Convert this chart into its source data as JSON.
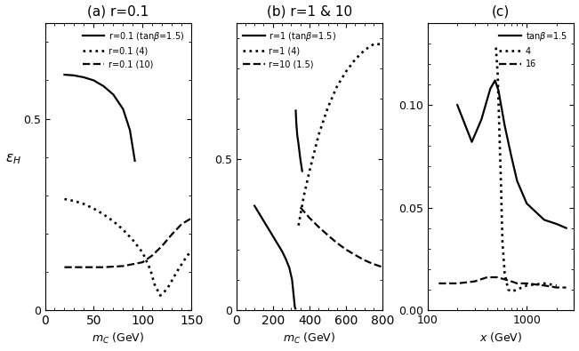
{
  "panel_a": {
    "title": "(a) r=0.1",
    "xlabel": "m_C (GeV)",
    "ylabel": "$\\varepsilon_H$",
    "xlim": [
      0,
      150
    ],
    "ylim": [
      0,
      0.75
    ],
    "legend": [
      "r=0.1 (tan$\\beta$=1.5)",
      "r=0.1 (4)",
      "r=0.1 (10)"
    ],
    "solid_x": [
      20,
      30,
      40,
      50,
      60,
      70,
      80,
      87,
      92
    ],
    "solid_y": [
      0.615,
      0.613,
      0.608,
      0.6,
      0.585,
      0.563,
      0.525,
      0.47,
      0.39
    ],
    "dotted_x": [
      20,
      30,
      40,
      50,
      60,
      70,
      80,
      90,
      100,
      108,
      112,
      118,
      125,
      135,
      145,
      150
    ],
    "dotted_y": [
      0.29,
      0.285,
      0.277,
      0.265,
      0.25,
      0.232,
      0.21,
      0.183,
      0.15,
      0.105,
      0.068,
      0.038,
      0.055,
      0.1,
      0.14,
      0.155
    ],
    "dashed_x": [
      20,
      40,
      60,
      80,
      100,
      110,
      120,
      130,
      140,
      150
    ],
    "dashed_y": [
      0.112,
      0.112,
      0.112,
      0.115,
      0.125,
      0.143,
      0.168,
      0.198,
      0.225,
      0.24
    ]
  },
  "panel_b": {
    "title": "(b) r=1 & 10",
    "xlabel": "m_C (GeV)",
    "xlim": [
      0,
      800
    ],
    "ylim": [
      0,
      0.95
    ],
    "legend": [
      "r=1 (tan$\\beta$=1.5)",
      "r=1 (4)",
      "r=10 (1.5)"
    ],
    "solid_x1": [
      100,
      130,
      160,
      190,
      220,
      250,
      270,
      290,
      305,
      315,
      320,
      323
    ],
    "solid_y1": [
      0.345,
      0.315,
      0.285,
      0.255,
      0.225,
      0.195,
      0.17,
      0.14,
      0.1,
      0.04,
      0.01,
      0.005
    ],
    "solid_x2": [
      325,
      328,
      333,
      340,
      350,
      360
    ],
    "solid_y2": [
      0.66,
      0.62,
      0.58,
      0.55,
      0.5,
      0.46
    ],
    "dotted_x": [
      340,
      370,
      400,
      450,
      500,
      550,
      600,
      650,
      700,
      750,
      800
    ],
    "dotted_y": [
      0.28,
      0.38,
      0.46,
      0.58,
      0.67,
      0.74,
      0.79,
      0.83,
      0.86,
      0.88,
      0.88
    ],
    "dashed_x": [
      350,
      400,
      450,
      500,
      550,
      600,
      650,
      700,
      750,
      800
    ],
    "dashed_y": [
      0.34,
      0.305,
      0.275,
      0.248,
      0.222,
      0.2,
      0.182,
      0.165,
      0.152,
      0.142
    ]
  },
  "panel_c": {
    "title": "(c)",
    "xlabel": "x (GeV)",
    "xlim_log": [
      100,
      3000
    ],
    "ylim": [
      0.0,
      0.14
    ],
    "legend": [
      "tan$\\beta$=1.5",
      "4",
      "16"
    ],
    "solid_x": [
      200,
      280,
      350,
      430,
      480,
      520,
      600,
      700,
      800,
      1000,
      1500,
      2000,
      2500
    ],
    "solid_y": [
      0.1,
      0.082,
      0.093,
      0.108,
      0.112,
      0.107,
      0.09,
      0.075,
      0.063,
      0.052,
      0.044,
      0.042,
      0.04
    ],
    "dotted_x": [
      490,
      510,
      530,
      550,
      570,
      600,
      650,
      700,
      800,
      1000,
      1500,
      2000
    ],
    "dotted_y": [
      0.128,
      0.115,
      0.088,
      0.062,
      0.033,
      0.018,
      0.01,
      0.009,
      0.01,
      0.012,
      0.013,
      0.012
    ],
    "dashed_x": [
      130,
      200,
      300,
      400,
      500,
      600,
      700,
      800,
      1000,
      1500,
      2000,
      2500
    ],
    "dashed_y": [
      0.013,
      0.013,
      0.014,
      0.016,
      0.016,
      0.015,
      0.014,
      0.013,
      0.013,
      0.012,
      0.011,
      0.011
    ]
  },
  "linewidth": 1.6,
  "fontsize": 9,
  "title_fontsize": 11
}
